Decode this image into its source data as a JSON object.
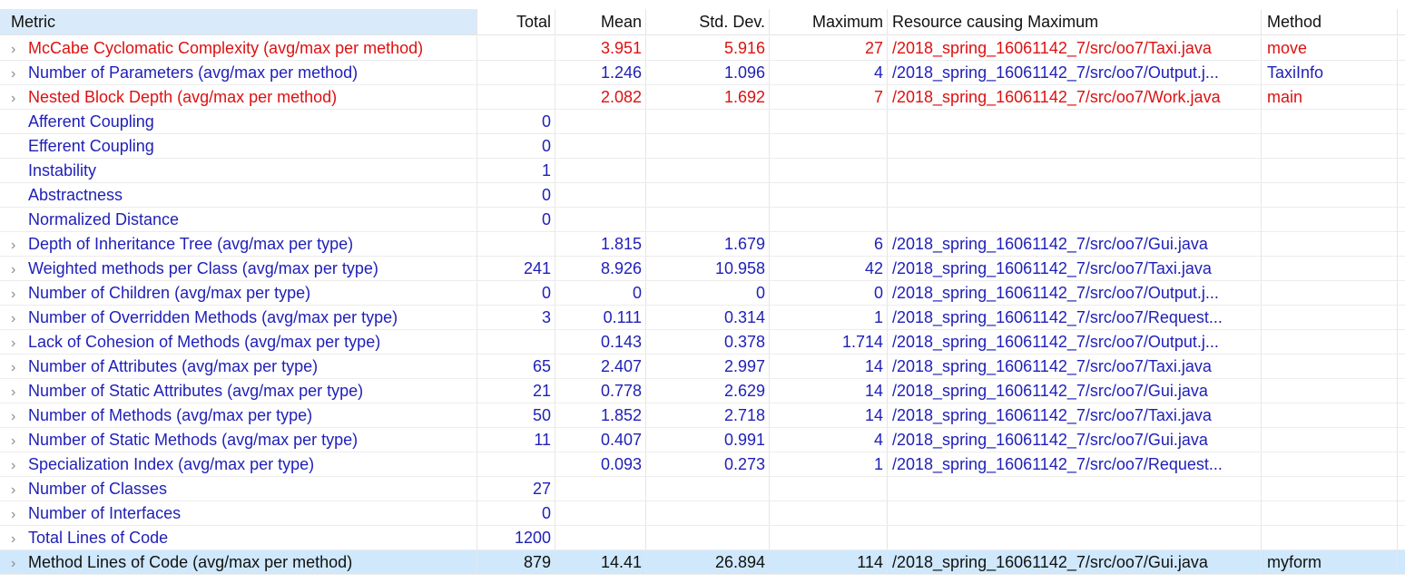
{
  "columns": {
    "metric": "Metric",
    "total": "Total",
    "mean": "Mean",
    "std": "Std. Dev.",
    "max": "Maximum",
    "resource": "Resource causing Maximum",
    "method": "Method"
  },
  "colors": {
    "normal": "#1f1fb8",
    "warning": "#dd1111",
    "selected_background": "#cfe8fc",
    "header_background": "#d9ebfb"
  },
  "rows": [
    {
      "metric": "McCabe Cyclomatic Complexity (avg/max per method)",
      "total": "",
      "mean": "3.951",
      "std": "5.916",
      "max": "27",
      "resource": "/2018_spring_16061142_7/src/oo7/Taxi.java",
      "method": "move",
      "status": "warning",
      "expandable": true
    },
    {
      "metric": "Number of Parameters (avg/max per method)",
      "total": "",
      "mean": "1.246",
      "std": "1.096",
      "max": "4",
      "resource": "/2018_spring_16061142_7/src/oo7/Output.j...",
      "method": "TaxiInfo",
      "status": "normal",
      "expandable": true
    },
    {
      "metric": "Nested Block Depth (avg/max per method)",
      "total": "",
      "mean": "2.082",
      "std": "1.692",
      "max": "7",
      "resource": "/2018_spring_16061142_7/src/oo7/Work.java",
      "method": "main",
      "status": "warning",
      "expandable": true
    },
    {
      "metric": "Afferent Coupling",
      "total": "0",
      "mean": "",
      "std": "",
      "max": "",
      "resource": "",
      "method": "",
      "status": "normal",
      "expandable": false
    },
    {
      "metric": "Efferent Coupling",
      "total": "0",
      "mean": "",
      "std": "",
      "max": "",
      "resource": "",
      "method": "",
      "status": "normal",
      "expandable": false
    },
    {
      "metric": "Instability",
      "total": "1",
      "mean": "",
      "std": "",
      "max": "",
      "resource": "",
      "method": "",
      "status": "normal",
      "expandable": false
    },
    {
      "metric": "Abstractness",
      "total": "0",
      "mean": "",
      "std": "",
      "max": "",
      "resource": "",
      "method": "",
      "status": "normal",
      "expandable": false
    },
    {
      "metric": "Normalized Distance",
      "total": "0",
      "mean": "",
      "std": "",
      "max": "",
      "resource": "",
      "method": "",
      "status": "normal",
      "expandable": false
    },
    {
      "metric": "Depth of Inheritance Tree (avg/max per type)",
      "total": "",
      "mean": "1.815",
      "std": "1.679",
      "max": "6",
      "resource": "/2018_spring_16061142_7/src/oo7/Gui.java",
      "method": "",
      "status": "normal",
      "expandable": true
    },
    {
      "metric": "Weighted methods per Class (avg/max per type)",
      "total": "241",
      "mean": "8.926",
      "std": "10.958",
      "max": "42",
      "resource": "/2018_spring_16061142_7/src/oo7/Taxi.java",
      "method": "",
      "status": "normal",
      "expandable": true
    },
    {
      "metric": "Number of Children (avg/max per type)",
      "total": "0",
      "mean": "0",
      "std": "0",
      "max": "0",
      "resource": "/2018_spring_16061142_7/src/oo7/Output.j...",
      "method": "",
      "status": "normal",
      "expandable": true
    },
    {
      "metric": "Number of Overridden Methods (avg/max per type)",
      "total": "3",
      "mean": "0.111",
      "std": "0.314",
      "max": "1",
      "resource": "/2018_spring_16061142_7/src/oo7/Request...",
      "method": "",
      "status": "normal",
      "expandable": true
    },
    {
      "metric": "Lack of Cohesion of Methods (avg/max per type)",
      "total": "",
      "mean": "0.143",
      "std": "0.378",
      "max": "1.714",
      "resource": "/2018_spring_16061142_7/src/oo7/Output.j...",
      "method": "",
      "status": "normal",
      "expandable": true
    },
    {
      "metric": "Number of Attributes (avg/max per type)",
      "total": "65",
      "mean": "2.407",
      "std": "2.997",
      "max": "14",
      "resource": "/2018_spring_16061142_7/src/oo7/Taxi.java",
      "method": "",
      "status": "normal",
      "expandable": true
    },
    {
      "metric": "Number of Static Attributes (avg/max per type)",
      "total": "21",
      "mean": "0.778",
      "std": "2.629",
      "max": "14",
      "resource": "/2018_spring_16061142_7/src/oo7/Gui.java",
      "method": "",
      "status": "normal",
      "expandable": true
    },
    {
      "metric": "Number of Methods (avg/max per type)",
      "total": "50",
      "mean": "1.852",
      "std": "2.718",
      "max": "14",
      "resource": "/2018_spring_16061142_7/src/oo7/Taxi.java",
      "method": "",
      "status": "normal",
      "expandable": true
    },
    {
      "metric": "Number of Static Methods (avg/max per type)",
      "total": "11",
      "mean": "0.407",
      "std": "0.991",
      "max": "4",
      "resource": "/2018_spring_16061142_7/src/oo7/Gui.java",
      "method": "",
      "status": "normal",
      "expandable": true
    },
    {
      "metric": "Specialization Index (avg/max per type)",
      "total": "",
      "mean": "0.093",
      "std": "0.273",
      "max": "1",
      "resource": "/2018_spring_16061142_7/src/oo7/Request...",
      "method": "",
      "status": "normal",
      "expandable": true
    },
    {
      "metric": "Number of Classes",
      "total": "27",
      "mean": "",
      "std": "",
      "max": "",
      "resource": "",
      "method": "",
      "status": "normal",
      "expandable": true
    },
    {
      "metric": "Number of Interfaces",
      "total": "0",
      "mean": "",
      "std": "",
      "max": "",
      "resource": "",
      "method": "",
      "status": "normal",
      "expandable": true
    },
    {
      "metric": "Total Lines of Code",
      "total": "1200",
      "mean": "",
      "std": "",
      "max": "",
      "resource": "",
      "method": "",
      "status": "normal",
      "expandable": true
    },
    {
      "metric": "Method Lines of Code (avg/max per method)",
      "total": "879",
      "mean": "14.41",
      "std": "26.894",
      "max": "114",
      "resource": "/2018_spring_16061142_7/src/oo7/Gui.java",
      "method": "myform",
      "status": "selected",
      "expandable": true
    }
  ]
}
